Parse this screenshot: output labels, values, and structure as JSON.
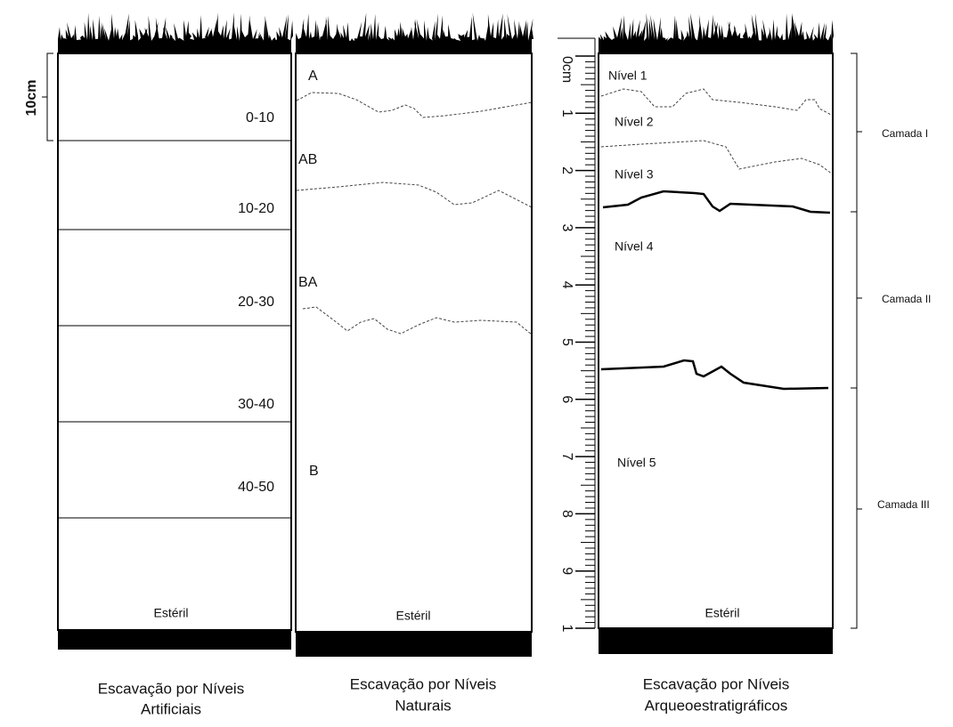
{
  "panels": [
    {
      "caption": [
        "Escavação por Níveis",
        "Artificiais"
      ],
      "scale_label": "10cm",
      "levels": [
        "0-10",
        "10-20",
        "20-30",
        "30-40",
        "40-50"
      ],
      "base_label": "Estéril"
    },
    {
      "caption": [
        "Escavação por Níveis",
        "Naturais"
      ],
      "horizons": [
        "A",
        "AB",
        "BA",
        "B"
      ],
      "base_label": "Estéril"
    },
    {
      "caption": [
        "Escavação por Níveis",
        "Arqueoestratigráficos"
      ],
      "levels": [
        "Nível 1",
        "Nível 2",
        "Nível 3",
        "Nível 4",
        "Nível 5"
      ],
      "base_label": "Estéril",
      "ruler": [
        "0cm",
        "1",
        "2",
        "3",
        "4",
        "5",
        "6",
        "7",
        "8",
        "9",
        "1"
      ],
      "layers": [
        "Camada I",
        "Camada II",
        "Camada III"
      ]
    }
  ]
}
